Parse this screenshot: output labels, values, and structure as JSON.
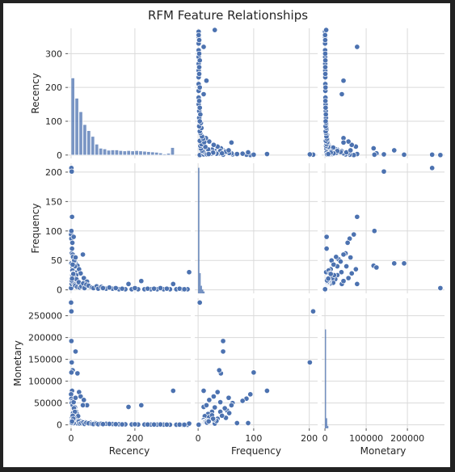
{
  "chart_data": {
    "type": "pairplot",
    "title": "RFM Feature Relationships",
    "variables": [
      "Recency",
      "Frequency",
      "Monetary"
    ],
    "series_color": "#4c72b0",
    "grid": true,
    "axes": {
      "Recency": {
        "lim": [
          -10,
          375
        ],
        "ticks": [
          0,
          100,
          200,
          300
        ],
        "tick_labels_x": [
          "0",
          "200"
        ],
        "tick_values_x": [
          0,
          200
        ],
        "tick_labels_y": [
          "0",
          "100",
          "200",
          "300"
        ]
      },
      "Frequency": {
        "lim": [
          -6,
          215
        ],
        "ticks": [
          0,
          50,
          100,
          150,
          200
        ],
        "tick_labels_x": [
          "0",
          "100",
          "200"
        ],
        "tick_values_x": [
          0,
          100,
          200
        ],
        "tick_labels_y": [
          "0",
          "50",
          "100",
          "150",
          "200"
        ]
      },
      "Monetary": {
        "lim": [
          -8000,
          290000
        ],
        "ticks": [
          0,
          50000,
          100000,
          150000,
          200000,
          250000
        ],
        "tick_labels_x": [
          "0",
          "100000",
          "200000"
        ],
        "tick_values_x": [
          0,
          100000,
          200000
        ],
        "tick_labels_y": [
          "0",
          "50000",
          "100000",
          "150000",
          "200000",
          "250000"
        ]
      }
    },
    "recency_hist": {
      "bin_width": 12.5,
      "counts_scaled_to_recency_axis": [
        228,
        168,
        128,
        90,
        72,
        55,
        32,
        20,
        18,
        14,
        15,
        15,
        13,
        12,
        13,
        12,
        13,
        12,
        11,
        10,
        9,
        8,
        6,
        3,
        5,
        22
      ]
    },
    "frequency_hist": {
      "peak_fraction": 0.99
    },
    "monetary_hist": {
      "peak_fraction": 0.78
    },
    "points": [
      [
        1,
        207,
        260000
      ],
      [
        2,
        201,
        143000
      ],
      [
        3,
        124,
        78000
      ],
      [
        0,
        94,
        70000
      ],
      [
        1,
        87,
        60000
      ],
      [
        4,
        80,
        55000
      ],
      [
        2,
        62,
        50000
      ],
      [
        5,
        60,
        45000
      ],
      [
        10,
        52,
        33000
      ],
      [
        14,
        45,
        168000
      ],
      [
        20,
        41,
        118000
      ],
      [
        25,
        35,
        75000
      ],
      [
        30,
        28,
        65000
      ],
      [
        40,
        20,
        57000
      ],
      [
        50,
        14,
        45000
      ],
      [
        8,
        40,
        52000
      ],
      [
        12,
        30,
        40000
      ],
      [
        16,
        25,
        30000
      ],
      [
        18,
        18,
        25000
      ],
      [
        22,
        12,
        20000
      ],
      [
        6,
        35,
        14000
      ],
      [
        9,
        22,
        12000
      ],
      [
        15,
        15,
        10000
      ],
      [
        28,
        10,
        9000
      ],
      [
        35,
        8,
        7000
      ],
      [
        45,
        6,
        6000
      ],
      [
        60,
        5,
        5000
      ],
      [
        75,
        4,
        4000
      ],
      [
        90,
        3,
        3000
      ],
      [
        110,
        2,
        2500
      ],
      [
        130,
        2,
        2000
      ],
      [
        150,
        1,
        1500
      ],
      [
        170,
        1,
        1200
      ],
      [
        190,
        1,
        1000
      ],
      [
        210,
        1,
        900
      ],
      [
        230,
        1,
        800
      ],
      [
        250,
        1,
        700
      ],
      [
        270,
        1,
        600
      ],
      [
        290,
        1,
        500
      ],
      [
        310,
        1,
        400
      ],
      [
        330,
        1,
        300
      ],
      [
        350,
        1,
        250
      ],
      [
        365,
        1,
        200
      ],
      [
        370,
        30,
        3000
      ],
      [
        180,
        10,
        41000
      ],
      [
        220,
        15,
        45000
      ],
      [
        320,
        10,
        78000
      ],
      [
        37,
        60,
        45000
      ],
      [
        0,
        3,
        280000
      ],
      [
        1,
        45,
        192000
      ],
      [
        5,
        38,
        125000
      ],
      [
        2,
        10,
        11000
      ],
      [
        3,
        20,
        18000
      ],
      [
        4,
        25,
        22000
      ],
      [
        7,
        12,
        8000
      ],
      [
        11,
        9,
        6500
      ],
      [
        13,
        7,
        5000
      ],
      [
        17,
        18,
        9000
      ],
      [
        19,
        5,
        3500
      ],
      [
        24,
        13,
        7500
      ],
      [
        27,
        4,
        2800
      ],
      [
        32,
        6,
        4000
      ],
      [
        38,
        11,
        5500
      ],
      [
        42,
        3,
        2200
      ],
      [
        48,
        9,
        4800
      ],
      [
        55,
        7,
        3600
      ],
      [
        65,
        4,
        2400
      ],
      [
        70,
        3,
        1800
      ],
      [
        80,
        6,
        3000
      ],
      [
        85,
        2,
        1500
      ],
      [
        95,
        5,
        2600
      ],
      [
        100,
        3,
        1700
      ],
      [
        120,
        4,
        2200
      ],
      [
        140,
        3,
        1600
      ],
      [
        160,
        2,
        1100
      ],
      [
        200,
        3,
        1400
      ],
      [
        240,
        2,
        900
      ],
      [
        260,
        2,
        800
      ],
      [
        280,
        3,
        1000
      ],
      [
        300,
        2,
        700
      ],
      [
        340,
        2,
        600
      ],
      [
        355,
        1,
        350
      ],
      [
        6,
        56,
        27000
      ],
      [
        9,
        48,
        38000
      ],
      [
        3,
        70,
        4000
      ],
      [
        8,
        90,
        4000
      ],
      [
        10,
        50,
        16000
      ],
      [
        12,
        40,
        30000
      ],
      [
        14,
        55,
        62000
      ],
      [
        4,
        33,
        9000
      ],
      [
        6,
        28,
        12000
      ],
      [
        2,
        16,
        5000
      ],
      [
        1,
        100,
        120000
      ],
      [
        5,
        43,
        21000
      ],
      [
        7,
        27,
        14000
      ],
      [
        3,
        19,
        8000
      ]
    ]
  }
}
